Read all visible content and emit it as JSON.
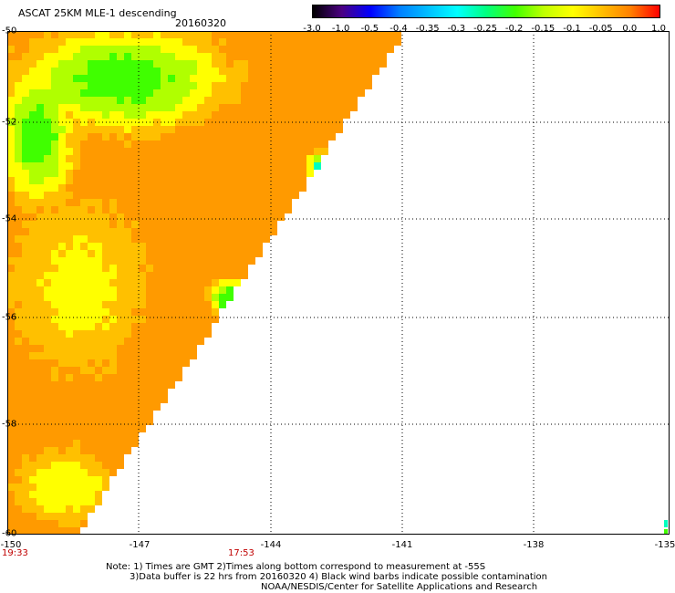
{
  "header": {
    "title": "ASCAT 25KM MLE-1 descending",
    "date": "20160320"
  },
  "colorbar": {
    "labels": [
      "-3.0",
      "-1.0",
      "-0.5",
      "-0.4",
      "-0.35",
      "-0.3",
      "-0.25",
      "-0.2",
      "-0.15",
      "-0.1",
      "-0.05",
      "0.0",
      "1.0"
    ],
    "colors": [
      "#000000",
      "#4b0082",
      "#0000ff",
      "#007fff",
      "#00bfff",
      "#00ffff",
      "#00ff80",
      "#40ff00",
      "#bfff00",
      "#ffff00",
      "#ffbf00",
      "#ff7f00",
      "#ff0000"
    ]
  },
  "axes": {
    "lat_labels": [
      "-50",
      "-52",
      "-54",
      "-56",
      "-58",
      "-60"
    ],
    "lon_labels": [
      "-150",
      "-147",
      "-144",
      "-141",
      "-138",
      "-135"
    ],
    "lat_range": [
      -60,
      -50
    ],
    "lon_range": [
      -150,
      -135
    ],
    "time_labels": [
      "19:33",
      "17:53"
    ]
  },
  "notes": [
    "Note: 1) Times are GMT 2)Times along bottom correspond to measurement at -55S",
    "3)Data buffer is 22 hrs from 20160320 4) Black wind barbs indicate possible contamination",
    "NOAA/NESDIS/Center for Satellite Applications and Research"
  ],
  "map_colors": {
    "orange": "#ff9a00",
    "orange_yellow": "#ffc000",
    "yellow": "#ffff00",
    "yellow_green": "#b0ff00",
    "green": "#40ff00",
    "cyan": "#00ffc0"
  }
}
